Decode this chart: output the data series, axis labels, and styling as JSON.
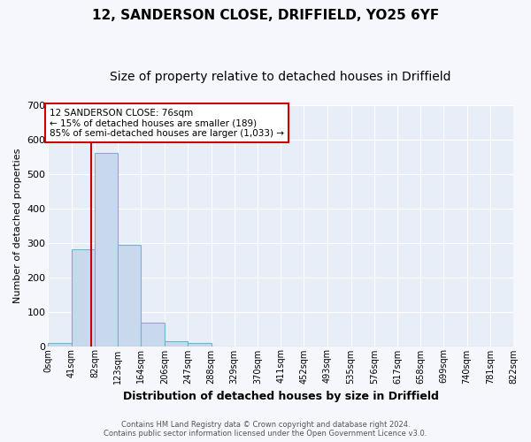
{
  "title": "12, SANDERSON CLOSE, DRIFFIELD, YO25 6YF",
  "subtitle": "Size of property relative to detached houses in Driffield",
  "xlabel": "Distribution of detached houses by size in Driffield",
  "ylabel": "Number of detached properties",
  "bin_edges": [
    0,
    41,
    82,
    123,
    164,
    206,
    247,
    288,
    329,
    370,
    411,
    452,
    493,
    535,
    576,
    617,
    658,
    699,
    740,
    781,
    822
  ],
  "bar_heights": [
    8,
    282,
    560,
    293,
    68,
    15,
    10,
    0,
    0,
    0,
    0,
    0,
    0,
    0,
    0,
    0,
    0,
    0,
    0,
    0
  ],
  "bar_color": "#c8d9ee",
  "bar_edge_color": "#7aafd4",
  "vline_x": 76,
  "vline_color": "#cc0000",
  "annotation_text": "12 SANDERSON CLOSE: 76sqm\n← 15% of detached houses are smaller (189)\n85% of semi-detached houses are larger (1,033) →",
  "annotation_box_facecolor": "white",
  "annotation_box_edgecolor": "#cc0000",
  "ylim": [
    0,
    700
  ],
  "yticks": [
    0,
    100,
    200,
    300,
    400,
    500,
    600,
    700
  ],
  "x_tick_labels": [
    "0sqm",
    "41sqm",
    "82sqm",
    "123sqm",
    "164sqm",
    "206sqm",
    "247sqm",
    "288sqm",
    "329sqm",
    "370sqm",
    "411sqm",
    "452sqm",
    "493sqm",
    "535sqm",
    "576sqm",
    "617sqm",
    "658sqm",
    "699sqm",
    "740sqm",
    "781sqm",
    "822sqm"
  ],
  "footer_line1": "Contains HM Land Registry data © Crown copyright and database right 2024.",
  "footer_line2": "Contains public sector information licensed under the Open Government Licence v3.0.",
  "plot_bg_color": "#e8eef8",
  "fig_bg_color": "#f5f7fc",
  "grid_color": "white",
  "title_fontsize": 11,
  "subtitle_fontsize": 10,
  "ylabel_fontsize": 8,
  "xlabel_fontsize": 9
}
